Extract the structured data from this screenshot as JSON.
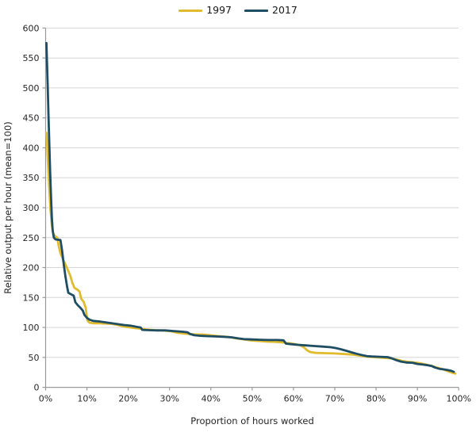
{
  "colors": {
    "background": "#ffffff",
    "grid": "#d6d6d6",
    "axis": "#9a9a9a",
    "text": "#262626",
    "series_1997": "#e0bb2d",
    "series_2017": "#1f4e64"
  },
  "chart_data": {
    "type": "line",
    "title": "",
    "xlabel": "Proportion of hours worked",
    "ylabel": "Relative output per hour (mean=100)",
    "xlim": [
      0,
      100
    ],
    "ylim": [
      0,
      600
    ],
    "grid": "horizontal-only",
    "legend_position": "top-center",
    "x_ticks": [
      {
        "value": 0,
        "label": "0%"
      },
      {
        "value": 10,
        "label": "10%"
      },
      {
        "value": 20,
        "label": "20%"
      },
      {
        "value": 30,
        "label": "30%"
      },
      {
        "value": 40,
        "label": "40%"
      },
      {
        "value": 50,
        "label": "50%"
      },
      {
        "value": 60,
        "label": "60%"
      },
      {
        "value": 70,
        "label": "70%"
      },
      {
        "value": 80,
        "label": "80%"
      },
      {
        "value": 90,
        "label": "90%"
      },
      {
        "value": 100,
        "label": "100%"
      }
    ],
    "y_ticks": [
      {
        "value": 0,
        "label": "0"
      },
      {
        "value": 50,
        "label": "50"
      },
      {
        "value": 100,
        "label": "100"
      },
      {
        "value": 150,
        "label": "150"
      },
      {
        "value": 200,
        "label": "200"
      },
      {
        "value": 250,
        "label": "250"
      },
      {
        "value": 300,
        "label": "300"
      },
      {
        "value": 350,
        "label": "350"
      },
      {
        "value": 400,
        "label": "400"
      },
      {
        "value": 450,
        "label": "450"
      },
      {
        "value": 500,
        "label": "500"
      },
      {
        "value": 550,
        "label": "550"
      },
      {
        "value": 600,
        "label": "600"
      }
    ],
    "series": [
      {
        "name": "1997",
        "color": "#e0bb2d",
        "points": [
          [
            0.2,
            425
          ],
          [
            0.4,
            400
          ],
          [
            0.6,
            370
          ],
          [
            0.9,
            330
          ],
          [
            1.2,
            295
          ],
          [
            1.5,
            272
          ],
          [
            1.8,
            258
          ],
          [
            2.2,
            253
          ],
          [
            2.8,
            250
          ],
          [
            3.2,
            235
          ],
          [
            3.6,
            224
          ],
          [
            4.2,
            214
          ],
          [
            4.8,
            205
          ],
          [
            5.4,
            196
          ],
          [
            6.0,
            186
          ],
          [
            6.5,
            174
          ],
          [
            7.0,
            166
          ],
          [
            7.7,
            163
          ],
          [
            8.2,
            160
          ],
          [
            8.6,
            148
          ],
          [
            9.2,
            143
          ],
          [
            9.7,
            133
          ],
          [
            10.1,
            112
          ],
          [
            10.6,
            108
          ],
          [
            11.5,
            107
          ],
          [
            13.0,
            107
          ],
          [
            14.5,
            106.5
          ],
          [
            16.0,
            106
          ],
          [
            17.5,
            104
          ],
          [
            18.6,
            102
          ],
          [
            20.0,
            100.5
          ],
          [
            21.5,
            99
          ],
          [
            23.0,
            98
          ],
          [
            24.5,
            96.5
          ],
          [
            26.5,
            95.5
          ],
          [
            28.5,
            95
          ],
          [
            30.5,
            93.5
          ],
          [
            32.0,
            91
          ],
          [
            34.0,
            89.5
          ],
          [
            36.0,
            88.5
          ],
          [
            38.5,
            88
          ],
          [
            40.5,
            86.5
          ],
          [
            42.5,
            85
          ],
          [
            44.5,
            84
          ],
          [
            46.0,
            82
          ],
          [
            47.5,
            80.5
          ],
          [
            49.5,
            78.5
          ],
          [
            51.5,
            77.5
          ],
          [
            53.5,
            76.5
          ],
          [
            55.5,
            76
          ],
          [
            57.5,
            75
          ],
          [
            58.5,
            74
          ],
          [
            60.0,
            72.5
          ],
          [
            61.5,
            70.5
          ],
          [
            62.5,
            67
          ],
          [
            63.3,
            62
          ],
          [
            64.0,
            59
          ],
          [
            65.5,
            57.5
          ],
          [
            67.5,
            57
          ],
          [
            70.0,
            56.5
          ],
          [
            72.5,
            55.5
          ],
          [
            74.5,
            54.5
          ],
          [
            76.0,
            53
          ],
          [
            77.5,
            51.5
          ],
          [
            79.5,
            50.5
          ],
          [
            81.5,
            49.5
          ],
          [
            83.5,
            48.5
          ],
          [
            85.0,
            46.5
          ],
          [
            86.3,
            44
          ],
          [
            87.8,
            42.5
          ],
          [
            89.3,
            41.5
          ],
          [
            90.8,
            40
          ],
          [
            92.0,
            38
          ],
          [
            93.3,
            36
          ],
          [
            94.5,
            33.5
          ],
          [
            95.8,
            31
          ],
          [
            96.8,
            28.5
          ],
          [
            97.8,
            26
          ],
          [
            98.6,
            24
          ],
          [
            99.2,
            23
          ]
        ]
      },
      {
        "name": "2017",
        "color": "#1f4e64",
        "points": [
          [
            0.2,
            575
          ],
          [
            0.35,
            540
          ],
          [
            0.5,
            505
          ],
          [
            0.7,
            455
          ],
          [
            0.9,
            405
          ],
          [
            1.1,
            360
          ],
          [
            1.3,
            320
          ],
          [
            1.5,
            285
          ],
          [
            1.7,
            262
          ],
          [
            2.0,
            250
          ],
          [
            2.4,
            247
          ],
          [
            3.6,
            246
          ],
          [
            4.0,
            228
          ],
          [
            4.4,
            205
          ],
          [
            4.8,
            185
          ],
          [
            5.2,
            168
          ],
          [
            5.5,
            158
          ],
          [
            6.0,
            156
          ],
          [
            6.8,
            153
          ],
          [
            7.2,
            142
          ],
          [
            7.8,
            137
          ],
          [
            8.4,
            133
          ],
          [
            9.0,
            128
          ],
          [
            9.4,
            121
          ],
          [
            10.0,
            116
          ],
          [
            10.6,
            113
          ],
          [
            11.5,
            111
          ],
          [
            13.0,
            110
          ],
          [
            14.5,
            108.5
          ],
          [
            16.0,
            107
          ],
          [
            17.5,
            105.5
          ],
          [
            19.0,
            104
          ],
          [
            20.5,
            103
          ],
          [
            22.0,
            101
          ],
          [
            23.0,
            100
          ],
          [
            23.4,
            96
          ],
          [
            25.0,
            95.5
          ],
          [
            27.0,
            95
          ],
          [
            29.0,
            95
          ],
          [
            31.0,
            94
          ],
          [
            33.0,
            93
          ],
          [
            34.3,
            92
          ],
          [
            35.0,
            89
          ],
          [
            36.0,
            87
          ],
          [
            37.5,
            86
          ],
          [
            39.0,
            85.5
          ],
          [
            41.0,
            85
          ],
          [
            43.0,
            84.5
          ],
          [
            45.0,
            83.5
          ],
          [
            46.5,
            82
          ],
          [
            48.0,
            80.5
          ],
          [
            50.0,
            80
          ],
          [
            52.0,
            79.5
          ],
          [
            54.0,
            79
          ],
          [
            56.0,
            79
          ],
          [
            57.6,
            78.5
          ],
          [
            58.2,
            73
          ],
          [
            59.5,
            72
          ],
          [
            61.0,
            71
          ],
          [
            63.0,
            70
          ],
          [
            65.0,
            69
          ],
          [
            67.0,
            68
          ],
          [
            69.0,
            67
          ],
          [
            70.3,
            65.5
          ],
          [
            71.5,
            63.5
          ],
          [
            72.8,
            61
          ],
          [
            74.0,
            58.5
          ],
          [
            75.3,
            56
          ],
          [
            76.5,
            54
          ],
          [
            77.8,
            52
          ],
          [
            79.0,
            51.5
          ],
          [
            81.0,
            51
          ],
          [
            82.8,
            50.5
          ],
          [
            83.8,
            48.5
          ],
          [
            84.8,
            45.5
          ],
          [
            86.0,
            43
          ],
          [
            87.3,
            41.5
          ],
          [
            88.8,
            41
          ],
          [
            90.0,
            39
          ],
          [
            91.3,
            38
          ],
          [
            92.5,
            37
          ],
          [
            93.5,
            35.5
          ],
          [
            94.3,
            33
          ],
          [
            95.3,
            31
          ],
          [
            96.3,
            30
          ],
          [
            97.3,
            29
          ],
          [
            98.2,
            27.5
          ],
          [
            98.8,
            26
          ]
        ]
      }
    ]
  }
}
